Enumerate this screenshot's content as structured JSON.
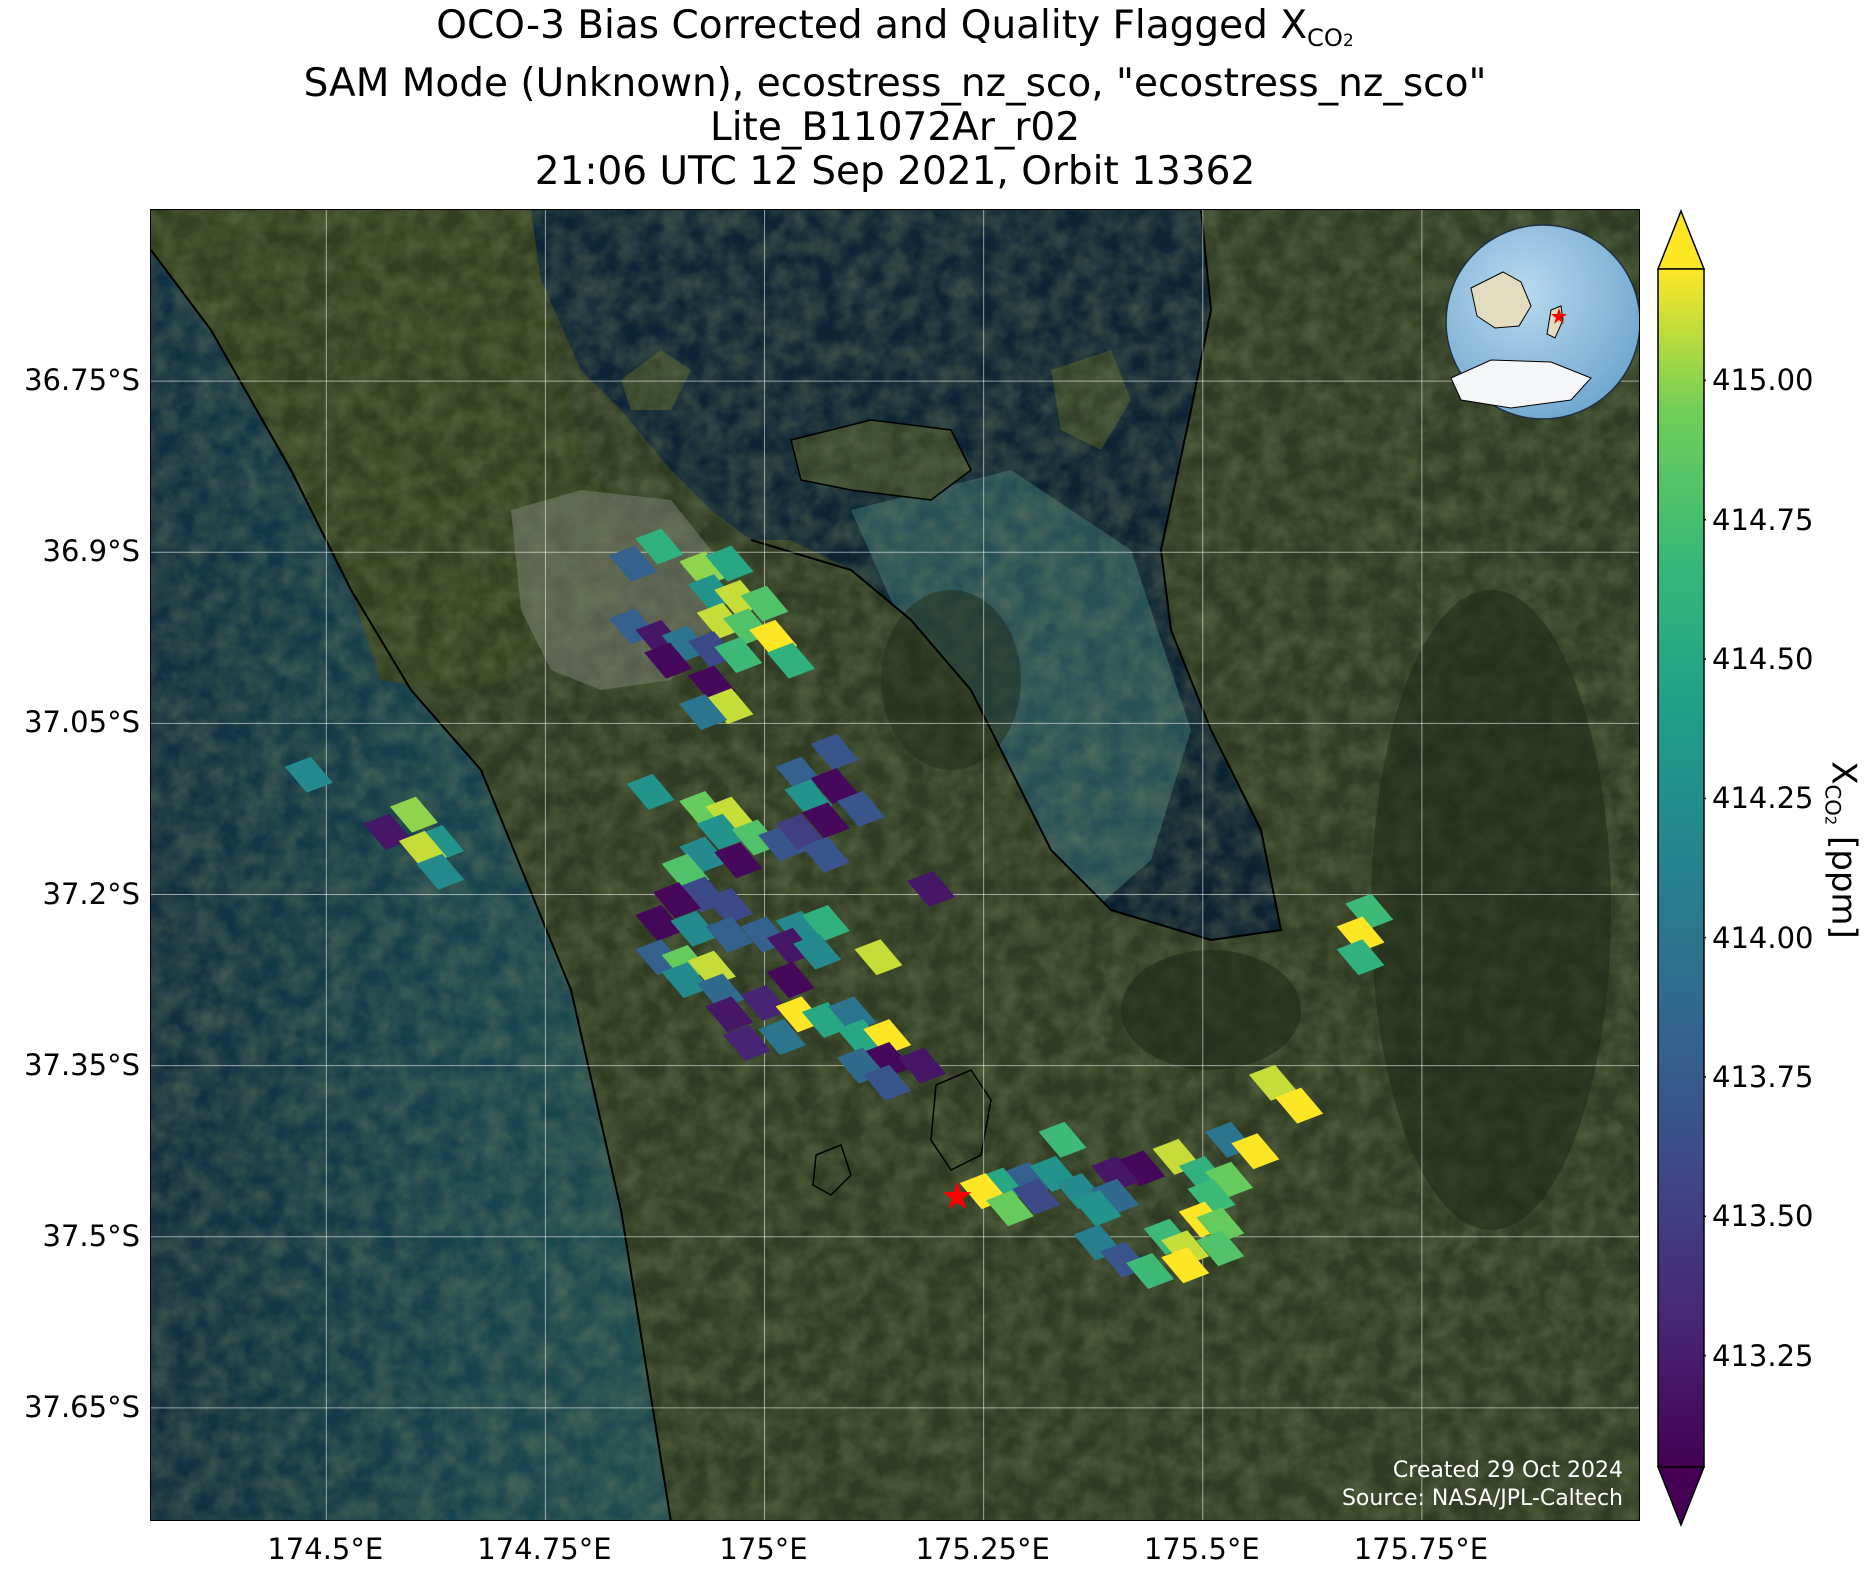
{
  "title": {
    "line1_prefix": "OCO-3 Bias Corrected and Quality Flagged X",
    "line1_sub": "CO",
    "line1_sub2": "2",
    "line2": "SAM Mode (Unknown), ecostress_nz_sco, \"ecostress_nz_sco\"",
    "line3": "Lite_B11072Ar_r02",
    "line4": "21:06 UTC 12 Sep 2021, Orbit 13362"
  },
  "map": {
    "lon_range": [
      174.3,
      176.0
    ],
    "lat_range": [
      -37.75,
      -36.6
    ],
    "x_ticks": [
      174.5,
      174.75,
      175.0,
      175.25,
      175.5,
      175.75
    ],
    "x_tick_labels": [
      "174.5°E",
      "174.75°E",
      "175°E",
      "175.25°E",
      "175.5°E",
      "175.75°E"
    ],
    "y_ticks": [
      -36.75,
      -36.9,
      -37.05,
      -37.2,
      -37.35,
      -37.5,
      -37.65
    ],
    "y_tick_labels": [
      "36.75°S",
      "36.9°S",
      "37.05°S",
      "37.2°S",
      "37.35°S",
      "37.5°S",
      "37.65°S"
    ],
    "grid": true,
    "target_marker": {
      "lon": 175.22,
      "lat": -37.465,
      "color": "#ff0000",
      "shape": "star-icon"
    },
    "inset_globe": {
      "position": "top-right",
      "shape": "globe-icon",
      "marker_color": "#ff0000"
    }
  },
  "credits": {
    "created": "Created 29 Oct 2024",
    "source": "Source: NASA/JPL-Caltech"
  },
  "colorbar": {
    "label_prefix": "X",
    "label_sub": "CO",
    "label_sub2": "2",
    "label_suffix": " [ppm]",
    "range": [
      413.05,
      415.2
    ],
    "ticks": [
      413.25,
      413.5,
      413.75,
      414.0,
      414.25,
      414.5,
      414.75,
      415.0
    ],
    "tick_labels": [
      "413.25",
      "413.50",
      "413.75",
      "414.00",
      "414.25",
      "414.50",
      "414.75",
      "415.00"
    ],
    "colormap": "viridis",
    "extend": "both"
  },
  "chart_data": {
    "type": "scatter",
    "variable": "XCO2",
    "units": "ppm",
    "points": [
      {
        "lon": 174.88,
        "lat": -36.895,
        "value": 414.6
      },
      {
        "lon": 174.85,
        "lat": -36.91,
        "value": 413.8
      },
      {
        "lon": 174.93,
        "lat": -36.915,
        "value": 415.0
      },
      {
        "lon": 174.96,
        "lat": -36.91,
        "value": 414.5
      },
      {
        "lon": 174.94,
        "lat": -36.935,
        "value": 414.3
      },
      {
        "lon": 174.97,
        "lat": -36.94,
        "value": 415.1
      },
      {
        "lon": 175.0,
        "lat": -36.945,
        "value": 414.8
      },
      {
        "lon": 174.95,
        "lat": -36.96,
        "value": 415.1
      },
      {
        "lon": 174.98,
        "lat": -36.965,
        "value": 414.8
      },
      {
        "lon": 175.01,
        "lat": -36.975,
        "value": 415.2
      },
      {
        "lon": 174.85,
        "lat": -36.965,
        "value": 413.8
      },
      {
        "lon": 174.88,
        "lat": -36.975,
        "value": 413.2
      },
      {
        "lon": 174.91,
        "lat": -36.98,
        "value": 414.0
      },
      {
        "lon": 174.94,
        "lat": -36.985,
        "value": 413.6
      },
      {
        "lon": 174.97,
        "lat": -36.99,
        "value": 414.7
      },
      {
        "lon": 175.03,
        "lat": -36.995,
        "value": 414.6
      },
      {
        "lon": 174.89,
        "lat": -36.995,
        "value": 413.1
      },
      {
        "lon": 174.94,
        "lat": -37.015,
        "value": 413.1
      },
      {
        "lon": 174.96,
        "lat": -37.035,
        "value": 415.1
      },
      {
        "lon": 174.93,
        "lat": -37.04,
        "value": 414.0
      },
      {
        "lon": 174.48,
        "lat": -37.095,
        "value": 414.2
      },
      {
        "lon": 174.6,
        "lat": -37.13,
        "value": 415.0
      },
      {
        "lon": 174.57,
        "lat": -37.145,
        "value": 413.2
      },
      {
        "lon": 174.63,
        "lat": -37.155,
        "value": 414.3
      },
      {
        "lon": 174.61,
        "lat": -37.16,
        "value": 415.1
      },
      {
        "lon": 174.63,
        "lat": -37.18,
        "value": 414.2
      },
      {
        "lon": 174.87,
        "lat": -37.11,
        "value": 414.3
      },
      {
        "lon": 174.93,
        "lat": -37.125,
        "value": 414.9
      },
      {
        "lon": 174.96,
        "lat": -37.13,
        "value": 415.1
      },
      {
        "lon": 174.95,
        "lat": -37.145,
        "value": 414.3
      },
      {
        "lon": 174.99,
        "lat": -37.15,
        "value": 414.8
      },
      {
        "lon": 175.02,
        "lat": -37.155,
        "value": 413.7
      },
      {
        "lon": 174.93,
        "lat": -37.165,
        "value": 414.2
      },
      {
        "lon": 174.97,
        "lat": -37.17,
        "value": 413.1
      },
      {
        "lon": 174.91,
        "lat": -37.18,
        "value": 414.8
      },
      {
        "lon": 174.93,
        "lat": -37.2,
        "value": 413.6
      },
      {
        "lon": 174.9,
        "lat": -37.205,
        "value": 413.1
      },
      {
        "lon": 174.96,
        "lat": -37.21,
        "value": 413.6
      },
      {
        "lon": 174.88,
        "lat": -37.225,
        "value": 413.1
      },
      {
        "lon": 174.92,
        "lat": -37.23,
        "value": 414.2
      },
      {
        "lon": 174.96,
        "lat": -37.235,
        "value": 413.8
      },
      {
        "lon": 175.0,
        "lat": -37.235,
        "value": 413.8
      },
      {
        "lon": 175.04,
        "lat": -37.23,
        "value": 414.2
      },
      {
        "lon": 175.07,
        "lat": -37.225,
        "value": 414.6
      },
      {
        "lon": 175.03,
        "lat": -37.245,
        "value": 413.2
      },
      {
        "lon": 175.06,
        "lat": -37.25,
        "value": 414.2
      },
      {
        "lon": 174.88,
        "lat": -37.255,
        "value": 413.8
      },
      {
        "lon": 174.91,
        "lat": -37.26,
        "value": 414.9
      },
      {
        "lon": 174.94,
        "lat": -37.265,
        "value": 415.1
      },
      {
        "lon": 174.91,
        "lat": -37.275,
        "value": 414.2
      },
      {
        "lon": 174.95,
        "lat": -37.285,
        "value": 413.9
      },
      {
        "lon": 175.03,
        "lat": -37.275,
        "value": 413.1
      },
      {
        "lon": 175.13,
        "lat": -37.255,
        "value": 415.1
      },
      {
        "lon": 174.96,
        "lat": -37.305,
        "value": 413.2
      },
      {
        "lon": 175.0,
        "lat": -37.295,
        "value": 413.3
      },
      {
        "lon": 175.04,
        "lat": -37.305,
        "value": 415.2
      },
      {
        "lon": 175.07,
        "lat": -37.31,
        "value": 414.5
      },
      {
        "lon": 175.1,
        "lat": -37.305,
        "value": 414.0
      },
      {
        "lon": 175.11,
        "lat": -37.325,
        "value": 414.5
      },
      {
        "lon": 175.14,
        "lat": -37.325,
        "value": 415.2
      },
      {
        "lon": 175.14,
        "lat": -37.345,
        "value": 413.1
      },
      {
        "lon": 175.11,
        "lat": -37.35,
        "value": 413.9
      },
      {
        "lon": 175.18,
        "lat": -37.35,
        "value": 413.2
      },
      {
        "lon": 175.14,
        "lat": -37.365,
        "value": 413.7
      },
      {
        "lon": 174.98,
        "lat": -37.33,
        "value": 413.3
      },
      {
        "lon": 175.02,
        "lat": -37.325,
        "value": 414.0
      },
      {
        "lon": 175.08,
        "lat": -37.075,
        "value": 413.7
      },
      {
        "lon": 175.04,
        "lat": -37.095,
        "value": 413.8
      },
      {
        "lon": 175.08,
        "lat": -37.105,
        "value": 413.1
      },
      {
        "lon": 175.05,
        "lat": -37.115,
        "value": 414.3
      },
      {
        "lon": 175.11,
        "lat": -37.125,
        "value": 413.7
      },
      {
        "lon": 175.07,
        "lat": -37.135,
        "value": 413.1
      },
      {
        "lon": 175.04,
        "lat": -37.145,
        "value": 413.5
      },
      {
        "lon": 175.07,
        "lat": -37.165,
        "value": 413.7
      },
      {
        "lon": 175.19,
        "lat": -37.195,
        "value": 413.2
      },
      {
        "lon": 175.69,
        "lat": -37.215,
        "value": 414.7
      },
      {
        "lon": 175.68,
        "lat": -37.235,
        "value": 415.2
      },
      {
        "lon": 175.68,
        "lat": -37.255,
        "value": 414.6
      },
      {
        "lon": 175.58,
        "lat": -37.365,
        "value": 415.1
      },
      {
        "lon": 175.61,
        "lat": -37.385,
        "value": 415.2
      },
      {
        "lon": 175.34,
        "lat": -37.415,
        "value": 414.7
      },
      {
        "lon": 175.53,
        "lat": -37.415,
        "value": 414.0
      },
      {
        "lon": 175.56,
        "lat": -37.425,
        "value": 415.2
      },
      {
        "lon": 175.47,
        "lat": -37.43,
        "value": 415.1
      },
      {
        "lon": 175.43,
        "lat": -37.44,
        "value": 413.1
      },
      {
        "lon": 175.4,
        "lat": -37.445,
        "value": 413.2
      },
      {
        "lon": 175.3,
        "lat": -37.45,
        "value": 413.8
      },
      {
        "lon": 175.33,
        "lat": -37.445,
        "value": 414.3
      },
      {
        "lon": 175.5,
        "lat": -37.445,
        "value": 414.6
      },
      {
        "lon": 175.53,
        "lat": -37.45,
        "value": 414.9
      },
      {
        "lon": 175.27,
        "lat": -37.455,
        "value": 414.5
      },
      {
        "lon": 175.25,
        "lat": -37.46,
        "value": 415.2
      },
      {
        "lon": 175.31,
        "lat": -37.465,
        "value": 413.6
      },
      {
        "lon": 175.36,
        "lat": -37.46,
        "value": 414.2
      },
      {
        "lon": 175.4,
        "lat": -37.465,
        "value": 413.9
      },
      {
        "lon": 175.51,
        "lat": -37.465,
        "value": 414.7
      },
      {
        "lon": 175.28,
        "lat": -37.475,
        "value": 414.9
      },
      {
        "lon": 175.38,
        "lat": -37.475,
        "value": 414.3
      },
      {
        "lon": 175.5,
        "lat": -37.485,
        "value": 415.2
      },
      {
        "lon": 175.52,
        "lat": -37.49,
        "value": 414.9
      },
      {
        "lon": 175.46,
        "lat": -37.5,
        "value": 414.7
      },
      {
        "lon": 175.48,
        "lat": -37.51,
        "value": 415.1
      },
      {
        "lon": 175.52,
        "lat": -37.51,
        "value": 414.8
      },
      {
        "lon": 175.38,
        "lat": -37.505,
        "value": 414.1
      },
      {
        "lon": 175.41,
        "lat": -37.52,
        "value": 413.7
      },
      {
        "lon": 175.44,
        "lat": -37.53,
        "value": 414.7
      },
      {
        "lon": 175.48,
        "lat": -37.525,
        "value": 415.2
      }
    ]
  }
}
